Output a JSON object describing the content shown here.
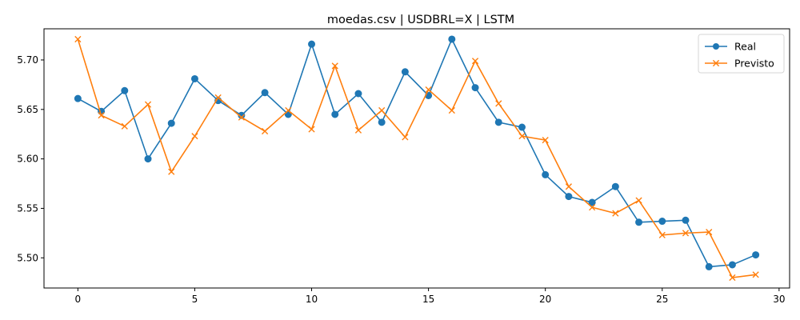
{
  "chart_data": {
    "type": "line",
    "title": "moedas.csv | USDBRL=X | LSTM",
    "xlabel": "",
    "ylabel": "",
    "x": [
      0,
      1,
      2,
      3,
      4,
      5,
      6,
      7,
      8,
      9,
      10,
      11,
      12,
      13,
      14,
      15,
      16,
      17,
      18,
      19,
      20,
      21,
      22,
      23,
      24,
      25,
      26,
      27,
      28,
      29
    ],
    "xlim": [
      -1.45,
      30.45
    ],
    "ylim": [
      5.4695,
      5.7315
    ],
    "xticks": [
      0,
      5,
      10,
      15,
      20,
      25,
      30
    ],
    "yticks": [
      5.5,
      5.55,
      5.6,
      5.65,
      5.7
    ],
    "xtick_labels": [
      "0",
      "5",
      "10",
      "15",
      "20",
      "25",
      "30"
    ],
    "ytick_labels": [
      "5.50",
      "5.55",
      "5.60",
      "5.65",
      "5.70"
    ],
    "grid": false,
    "legend_position": "top-right",
    "series": [
      {
        "name": "Real",
        "color": "#1f77b4",
        "marker": "circle",
        "values": [
          5.661,
          5.648,
          5.669,
          5.6,
          5.636,
          5.681,
          5.659,
          5.644,
          5.667,
          5.645,
          5.716,
          5.645,
          5.666,
          5.637,
          5.688,
          5.664,
          5.721,
          5.672,
          5.637,
          5.632,
          5.584,
          5.562,
          5.556,
          5.572,
          5.536,
          5.537,
          5.538,
          5.491,
          5.493,
          5.503
        ]
      },
      {
        "name": "Previsto",
        "color": "#ff7f0e",
        "marker": "x",
        "values": [
          5.721,
          5.644,
          5.633,
          5.655,
          5.587,
          5.623,
          5.662,
          5.642,
          5.628,
          5.649,
          5.63,
          5.694,
          5.629,
          5.649,
          5.622,
          5.67,
          5.649,
          5.699,
          5.656,
          5.623,
          5.619,
          5.572,
          5.551,
          5.545,
          5.558,
          5.523,
          5.525,
          5.526,
          5.48,
          5.483
        ]
      }
    ]
  }
}
